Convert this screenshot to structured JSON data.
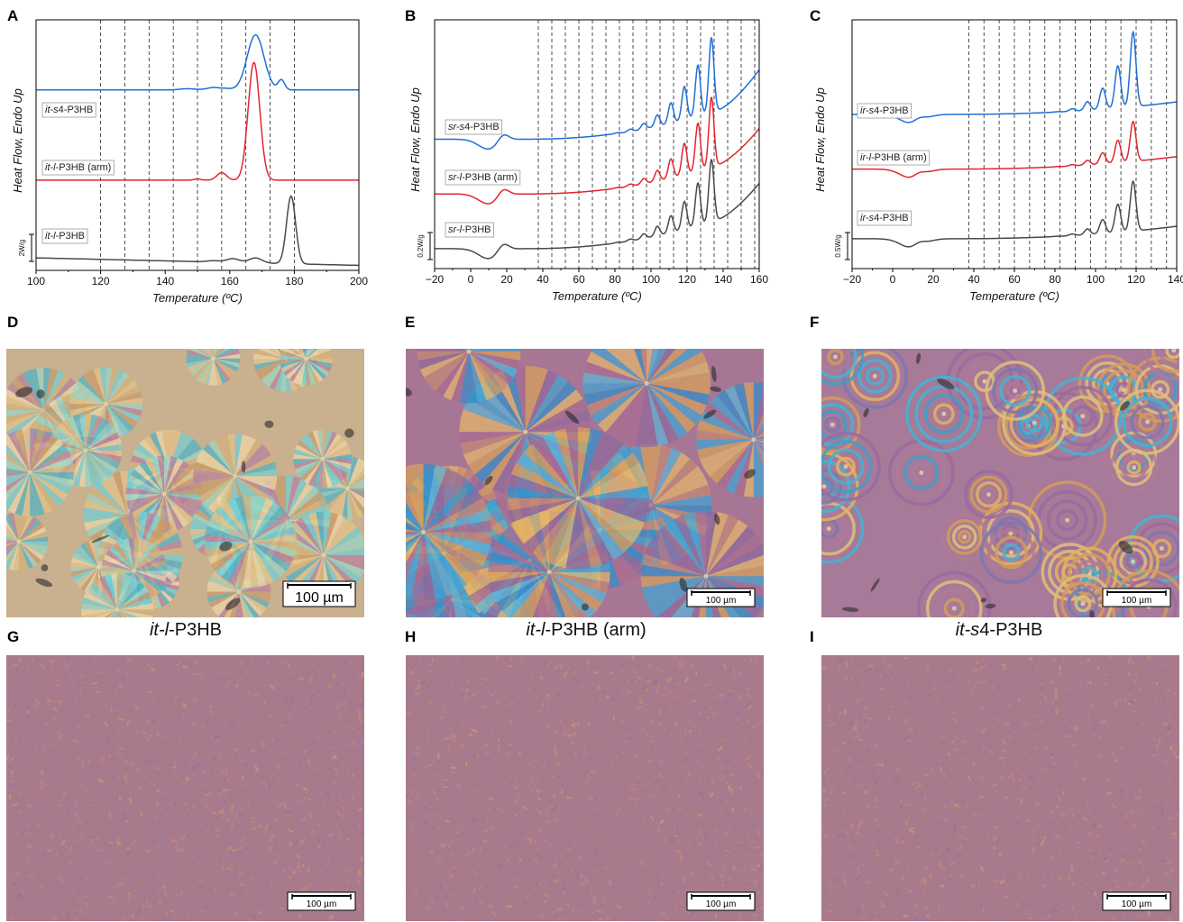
{
  "colors": {
    "blue": "#1f6fd9",
    "red": "#e3262d",
    "gray": "#4a4a4a"
  },
  "panel_letters": [
    "A",
    "B",
    "C",
    "D",
    "E",
    "F",
    "G",
    "H",
    "I"
  ],
  "captions": {
    "D": {
      "prefix": "it-l",
      "rest": "-P3HB"
    },
    "E": {
      "prefix": "it-l",
      "rest": "-P3HB (arm)"
    },
    "F": {
      "prefix": "it-s",
      "rest": "4-P3HB"
    }
  },
  "scalebars": {
    "D": "100 µm",
    "E": "100 µm",
    "F": "100 µm",
    "G": "100 µm",
    "H": "100 µm",
    "I": "100 µm"
  },
  "micro_style": {
    "D": "spherulite-bright",
    "E": "spherulite-large",
    "F": "banded-spherulite",
    "G": "fine-grain",
    "H": "fine-grain",
    "I": "fine-grain"
  },
  "chart_data": [
    {
      "type": "line",
      "panel": "A",
      "xlabel": "Temperature (ºC)",
      "ylabel": "Heat Flow, Endo Up",
      "xlim": [
        100,
        200
      ],
      "xticks": [
        100,
        120,
        140,
        160,
        180,
        200
      ],
      "dashed_lines_x": [
        120,
        127.5,
        135,
        142.5,
        150,
        157.5,
        165,
        172.5,
        180
      ],
      "scale_bar_label": "2W/g",
      "series": [
        {
          "name": "it-s4-P3HB",
          "label_italic": "it-s",
          "label_rest": "4-P3HB",
          "color": "blue",
          "baseline": 0.72,
          "peaks": [
            [
              147,
              0.005,
              2.5
            ],
            [
              155,
              0.01,
              2
            ],
            [
              159,
              0.005,
              1.5
            ],
            [
              168,
              0.22,
              2.6
            ],
            [
              176,
              0.04,
              1.0
            ]
          ]
        },
        {
          "name": "it-l-P3HB (arm)",
          "label_italic": "it-l",
          "label_rest": "-P3HB (arm)",
          "color": "red",
          "baseline": 0.36,
          "peaks": [
            [
              150,
              0.005,
              1.0
            ],
            [
              157.5,
              0.03,
              1.5
            ],
            [
              167.5,
              0.47,
              1.8
            ]
          ]
        },
        {
          "name": "it-l-P3HB",
          "label_italic": "it-l",
          "label_rest": "-P3HB",
          "color": "gray",
          "baseline": 0.05,
          "drift": -0.03,
          "peaks": [
            [
              155,
              0.005,
              2
            ],
            [
              161,
              0.015,
              2
            ],
            [
              168,
              0.02,
              2
            ],
            [
              179,
              0.27,
              1.4
            ]
          ]
        }
      ]
    },
    {
      "type": "line",
      "panel": "B",
      "xlabel": "Temperature (ºC)",
      "ylabel": "Heat Flow, Endo Up",
      "xlim": [
        -20,
        160
      ],
      "xticks": [
        -20,
        0,
        20,
        40,
        60,
        80,
        100,
        120,
        140,
        160
      ],
      "dashed_lines_x": [
        37.5,
        45,
        52.5,
        60,
        67.5,
        75,
        82.5,
        90,
        97.5,
        105,
        112.5,
        120,
        127.5,
        135,
        142.5,
        150,
        157.5
      ],
      "scale_bar_label": "0.2W/g",
      "series": [
        {
          "name": "sr-s4-P3HB",
          "label_italic": "sr-s",
          "label_rest": "4-P3HB",
          "color": "blue",
          "baseline": 0.52,
          "cold_peak": [
            18,
            0.03
          ],
          "rise": 0.18,
          "peaks_start": 75,
          "peaks_end": 135,
          "peak_top": 0.3,
          "end_rise": 0.12
        },
        {
          "name": "sr-l-P3HB (arm)",
          "label_italic": "sr-l",
          "label_rest": "-P3HB (arm)",
          "color": "red",
          "baseline": 0.3,
          "cold_peak": [
            18,
            0.03
          ],
          "rise": 0.18,
          "peaks_start": 75,
          "peaks_end": 135,
          "peak_top": 0.28,
          "end_rise": 0.1
        },
        {
          "name": "sr-l-P3HB",
          "label_italic": "sr-l",
          "label_rest": "-P3HB",
          "color": "gray",
          "baseline": 0.08,
          "cold_peak": [
            18,
            0.03
          ],
          "rise": 0.18,
          "peaks_start": 75,
          "peaks_end": 135,
          "peak_top": 0.25,
          "end_rise": 0.1
        }
      ]
    },
    {
      "type": "line",
      "panel": "C",
      "xlabel": "Temperature (ºC)",
      "ylabel": "Heat Flow, Endo Up",
      "xlim": [
        -20,
        140
      ],
      "xticks": [
        -20,
        0,
        20,
        40,
        60,
        80,
        100,
        120,
        140
      ],
      "dashed_lines_x": [
        37.5,
        45,
        52.5,
        60,
        67.5,
        75,
        82.5,
        90,
        97.5,
        105,
        112.5,
        120,
        127.5,
        135
      ],
      "scale_bar_label": "0.5W/g",
      "series": [
        {
          "name": "ir-s4-P3HB",
          "label_italic": "ir-s",
          "label_rest": "4-P3HB",
          "color": "blue",
          "baseline": 0.62,
          "cold_peak": [
            13,
            0.02
          ],
          "rise": 0.05,
          "peaks_start": 82,
          "peaks_end": 120,
          "peak_top": 0.3,
          "end_rise": 0.0
        },
        {
          "name": "ir-l-P3HB (arm)",
          "label_italic": "ir-l",
          "label_rest": "-P3HB (arm)",
          "color": "red",
          "baseline": 0.4,
          "cold_peak": [
            13,
            0.02
          ],
          "rise": 0.05,
          "peaks_start": 82,
          "peaks_end": 120,
          "peak_top": 0.16,
          "end_rise": 0.0
        },
        {
          "name": "ir-s4-P3HB",
          "label_italic": "ir-s",
          "label_rest": "4-P3HB",
          "color": "gray",
          "baseline": 0.12,
          "cold_peak": [
            13,
            0.02
          ],
          "rise": 0.05,
          "peaks_start": 82,
          "peaks_end": 120,
          "peak_top": 0.2,
          "end_rise": 0.0
        }
      ]
    }
  ]
}
